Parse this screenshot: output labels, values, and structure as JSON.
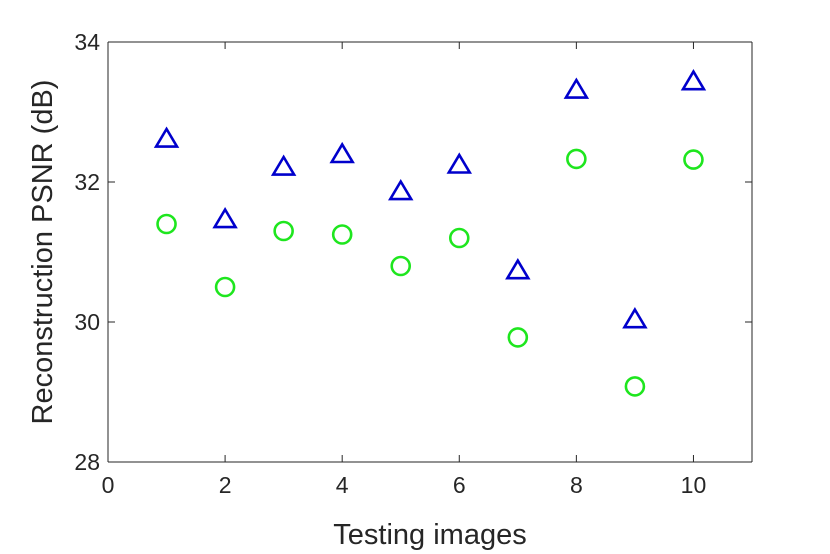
{
  "chart_data": {
    "type": "scatter",
    "title": "",
    "xlabel": "Testing images",
    "ylabel": "Reconstruction PSNR (dB)",
    "xlim": [
      0,
      11
    ],
    "ylim": [
      28,
      34
    ],
    "xticks": [
      0,
      2,
      4,
      6,
      8,
      10
    ],
    "yticks": [
      28,
      30,
      32,
      34
    ],
    "grid": false,
    "legend": "none",
    "series": [
      {
        "marker": "triangle",
        "color": "#0000CC",
        "x": [
          1,
          2,
          3,
          4,
          5,
          6,
          7,
          8,
          9,
          10
        ],
        "y": [
          32.6,
          31.45,
          32.2,
          32.38,
          31.85,
          32.23,
          30.72,
          33.3,
          30.02,
          33.42
        ]
      },
      {
        "marker": "circle",
        "color": "#1EE61E",
        "x": [
          1,
          2,
          3,
          4,
          5,
          6,
          7,
          8,
          9,
          10
        ],
        "y": [
          31.4,
          30.5,
          31.3,
          31.25,
          30.8,
          31.2,
          29.78,
          32.33,
          29.08,
          32.32
        ]
      }
    ]
  }
}
